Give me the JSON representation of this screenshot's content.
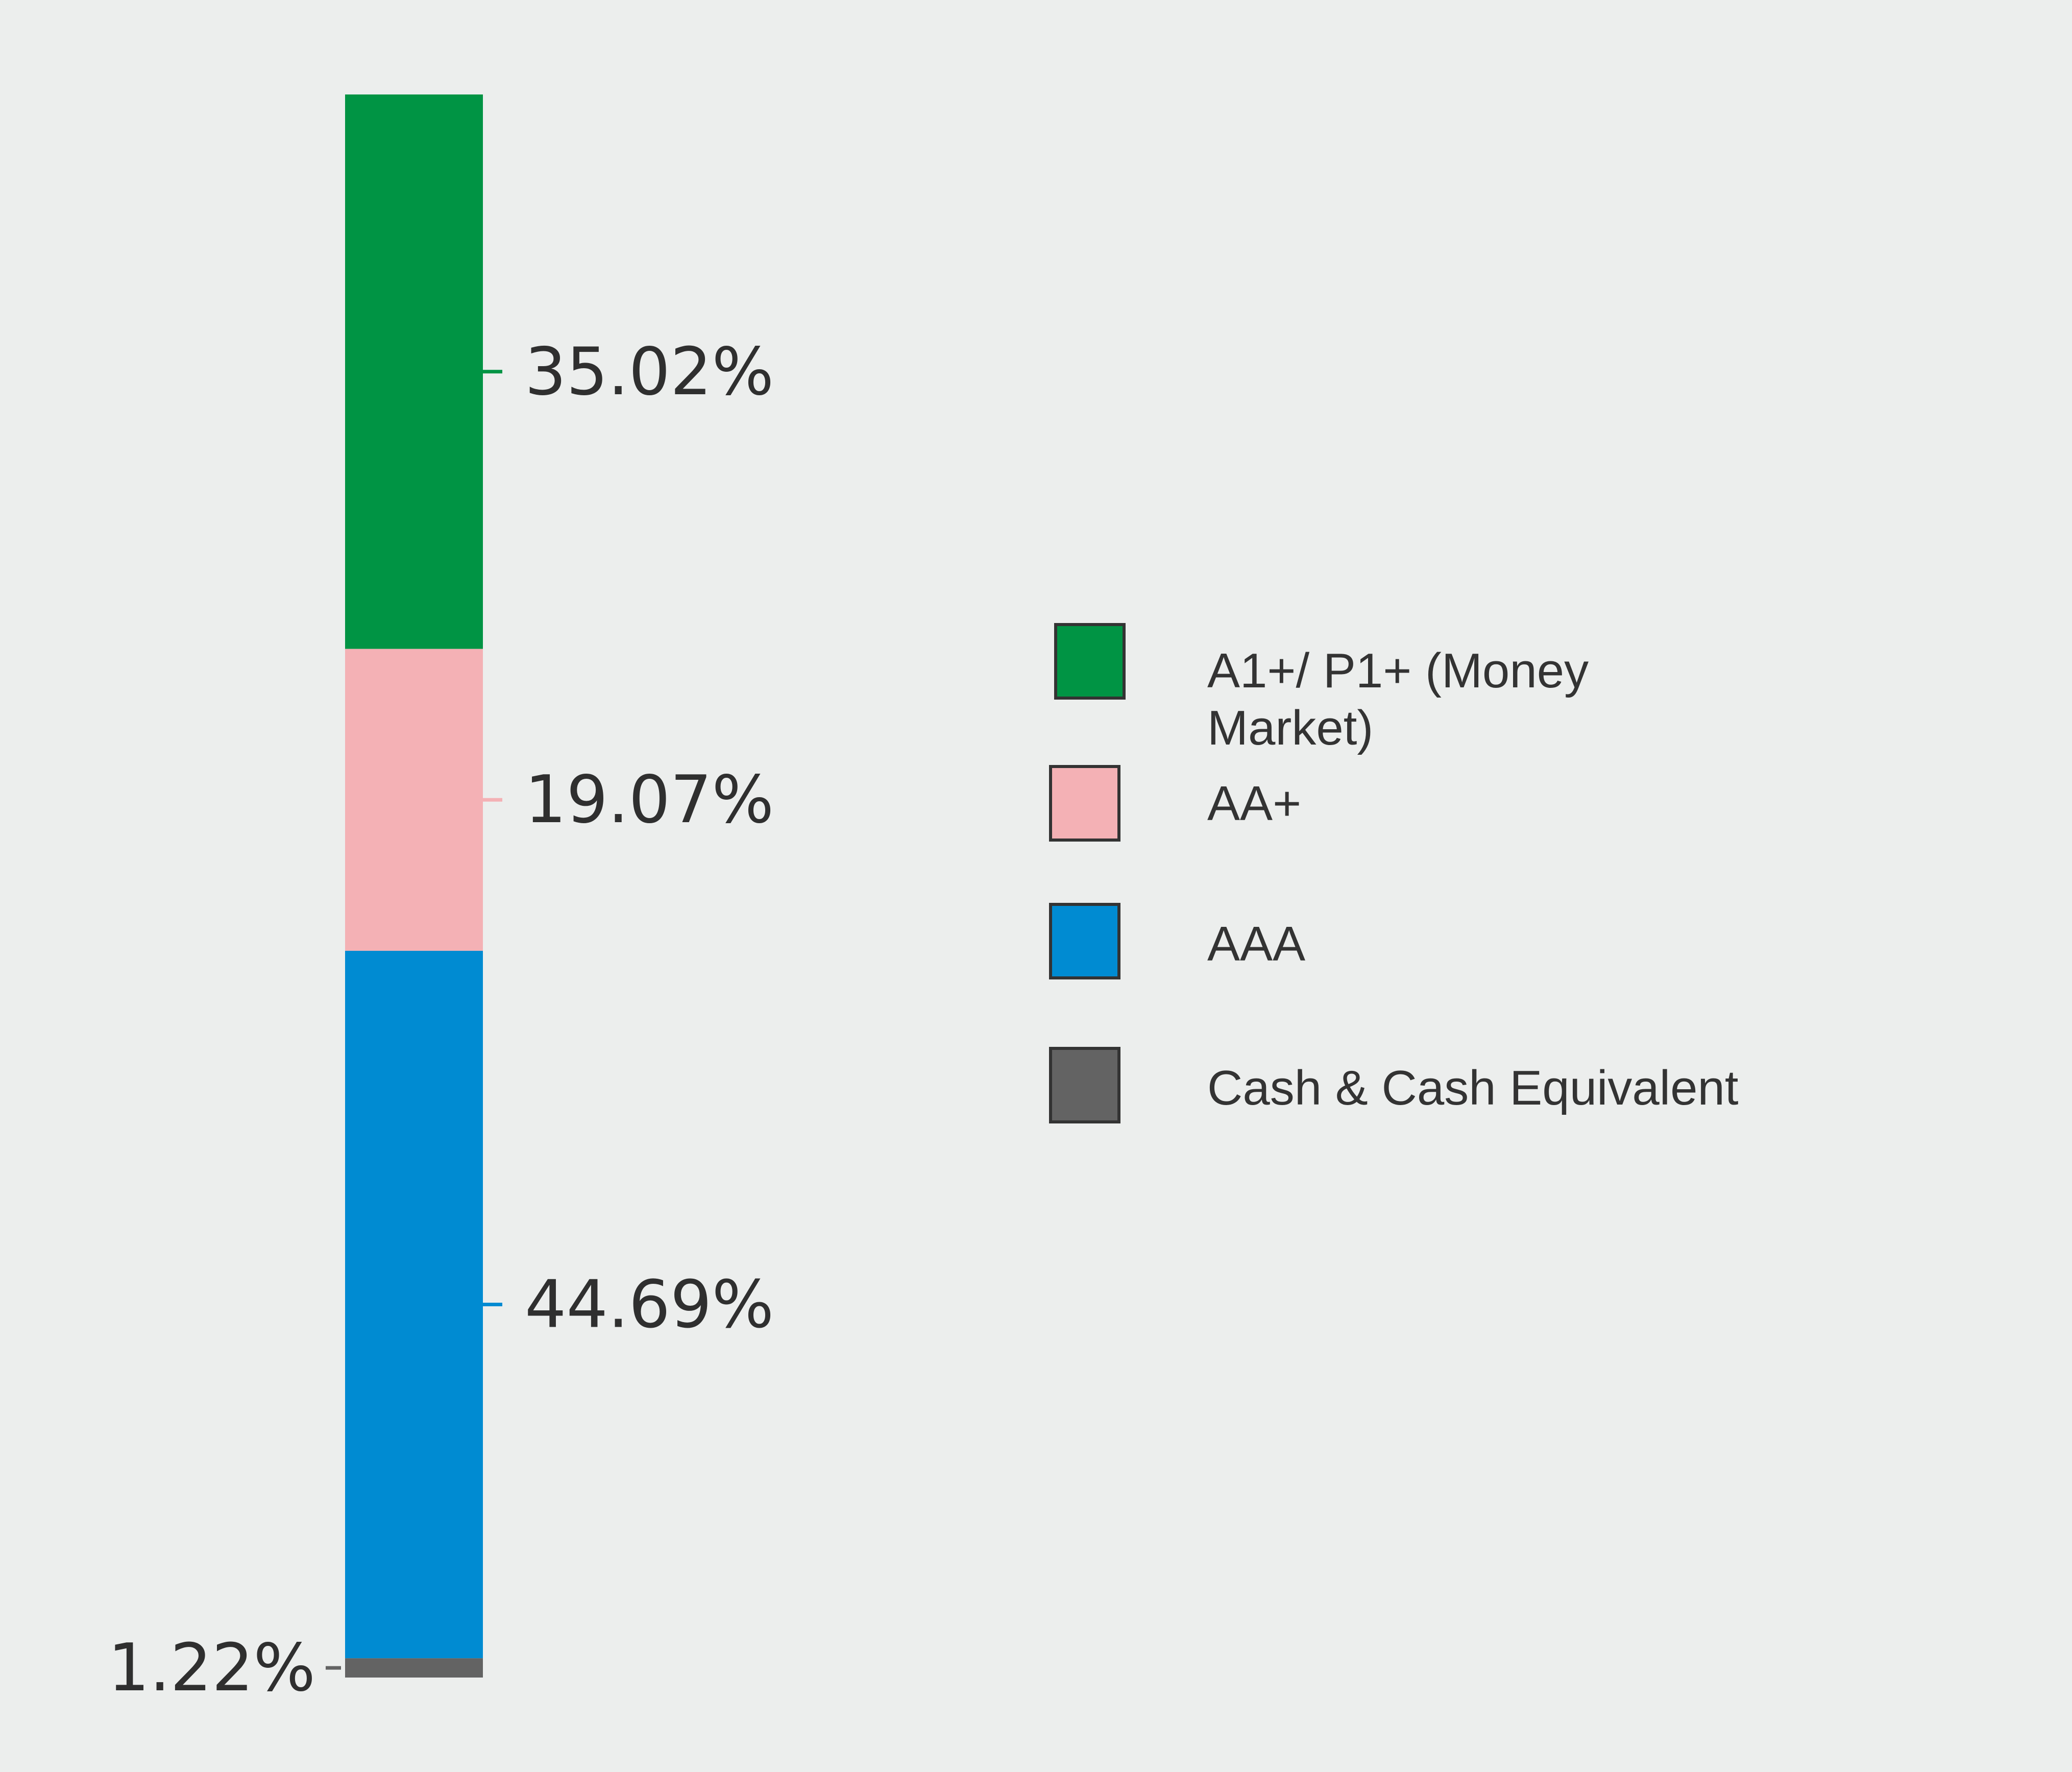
{
  "chart_data": {
    "type": "bar",
    "stacked": true,
    "orientation": "vertical",
    "categories": [
      ""
    ],
    "series": [
      {
        "name": "Cash & Cash Equivalent",
        "values": [
          1.22
        ],
        "label": "1.22%",
        "color": "#636363"
      },
      {
        "name": "AAA",
        "values": [
          44.69
        ],
        "label": "44.69%",
        "color": "#008bd2"
      },
      {
        "name": "AA+",
        "values": [
          19.07
        ],
        "label": "19.07%",
        "color": "#f4b1b5"
      },
      {
        "name": "A1+/ P1+ (Money Market)",
        "values": [
          35.02
        ],
        "label": "35.02%",
        "color": "#009444"
      }
    ],
    "ylim": [
      0,
      100
    ],
    "grid": false,
    "legend_position": "right",
    "title": "",
    "xlabel": "",
    "ylabel": ""
  },
  "legend": {
    "items": [
      {
        "label_line1": "A1+/ P1+ (Money",
        "label_line2": "Market)",
        "color": "#009444"
      },
      {
        "label_line1": "AA+",
        "label_line2": "",
        "color": "#f4b1b5"
      },
      {
        "label_line1": "AAA",
        "label_line2": "",
        "color": "#008bd2"
      },
      {
        "label_line1": "Cash & Cash Equivalent",
        "label_line2": "",
        "color": "#636363"
      }
    ]
  }
}
